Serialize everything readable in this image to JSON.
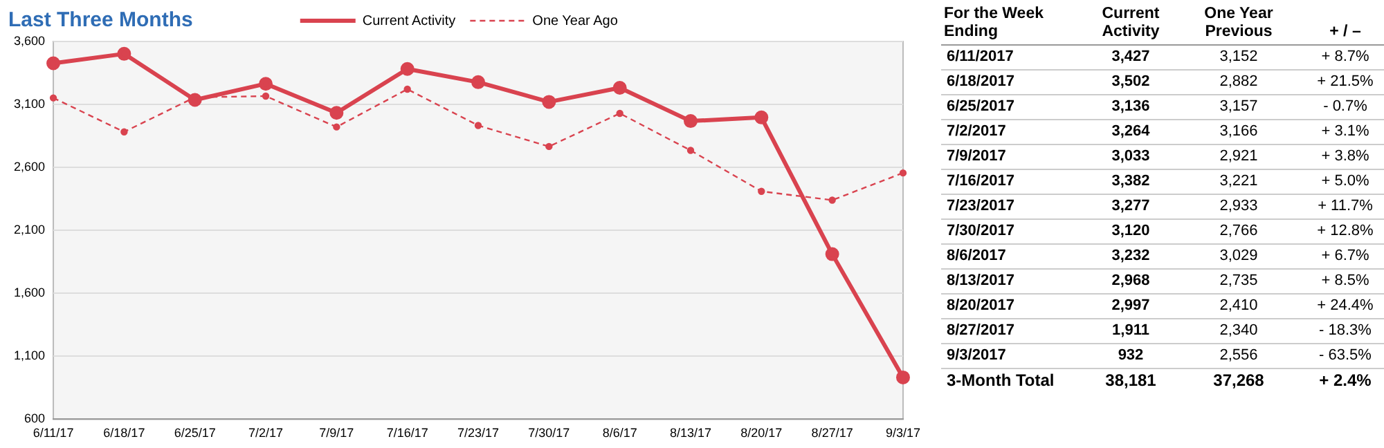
{
  "chart_data": {
    "type": "line",
    "title": "Last Three Months",
    "categories": [
      "6/11/17",
      "6/18/17",
      "6/25/17",
      "7/2/17",
      "7/9/17",
      "7/16/17",
      "7/23/17",
      "7/30/17",
      "8/6/17",
      "8/13/17",
      "8/20/17",
      "8/27/17",
      "9/3/17"
    ],
    "series": [
      {
        "name": "Current Activity",
        "color": "#d9434f",
        "values": [
          3427,
          3502,
          3136,
          3264,
          3033,
          3382,
          3277,
          3120,
          3232,
          2968,
          2997,
          1911,
          932
        ],
        "value_labels": [
          "3,427",
          "3,502",
          "3,136",
          "3,264",
          "3,033",
          "3,382",
          "3,277",
          "3,120",
          "3,232",
          "2,968",
          "2,997",
          "1,911",
          "932"
        ],
        "line_style": "solid"
      },
      {
        "name": "One Year Ago",
        "color": "#d9434f",
        "values": [
          3152,
          2882,
          3157,
          3166,
          2921,
          3221,
          2933,
          2766,
          3029,
          2735,
          2410,
          2340,
          2556
        ],
        "value_labels": [
          "3,152",
          "2,882",
          "3,157",
          "3,166",
          "2,921",
          "3,221",
          "2,933",
          "2,766",
          "3,029",
          "2,735",
          "2,410",
          "2,340",
          "2,556"
        ],
        "line_style": "dashed"
      }
    ],
    "ylim": [
      600,
      3600
    ],
    "yticks": [
      {
        "value": 600,
        "label": "600"
      },
      {
        "value": 1100,
        "label": "1,100"
      },
      {
        "value": 1600,
        "label": "1,600"
      },
      {
        "value": 2100,
        "label": "2,100"
      },
      {
        "value": 2600,
        "label": "2,600"
      },
      {
        "value": 3100,
        "label": "3,100"
      },
      {
        "value": 3600,
        "label": "3,600"
      }
    ],
    "grid": "y",
    "legend": "top",
    "marker": "circle",
    "annotations": [
      "For the Week Ending",
      "One Year Previous",
      "+ / –",
      "6/11/2017",
      "6/18/2017",
      "6/25/2017",
      "7/2/2017",
      "7/9/2017",
      "7/16/2017",
      "7/23/2017",
      "7/30/2017",
      "8/6/2017",
      "8/13/2017",
      "8/20/2017",
      "8/27/2017",
      "9/3/2017",
      "+ 8.7%",
      "+ 21.5%",
      "- 0.7%",
      "+ 3.1%",
      "+ 3.8%",
      "+ 5.0%",
      "+ 11.7%",
      "+ 12.8%",
      "+ 6.7%",
      "+ 8.5%",
      "+ 24.4%",
      "- 18.3%",
      "- 63.5%",
      "3-Month Total",
      "38,181",
      "37,268",
      "+ 2.4%"
    ]
  }
}
